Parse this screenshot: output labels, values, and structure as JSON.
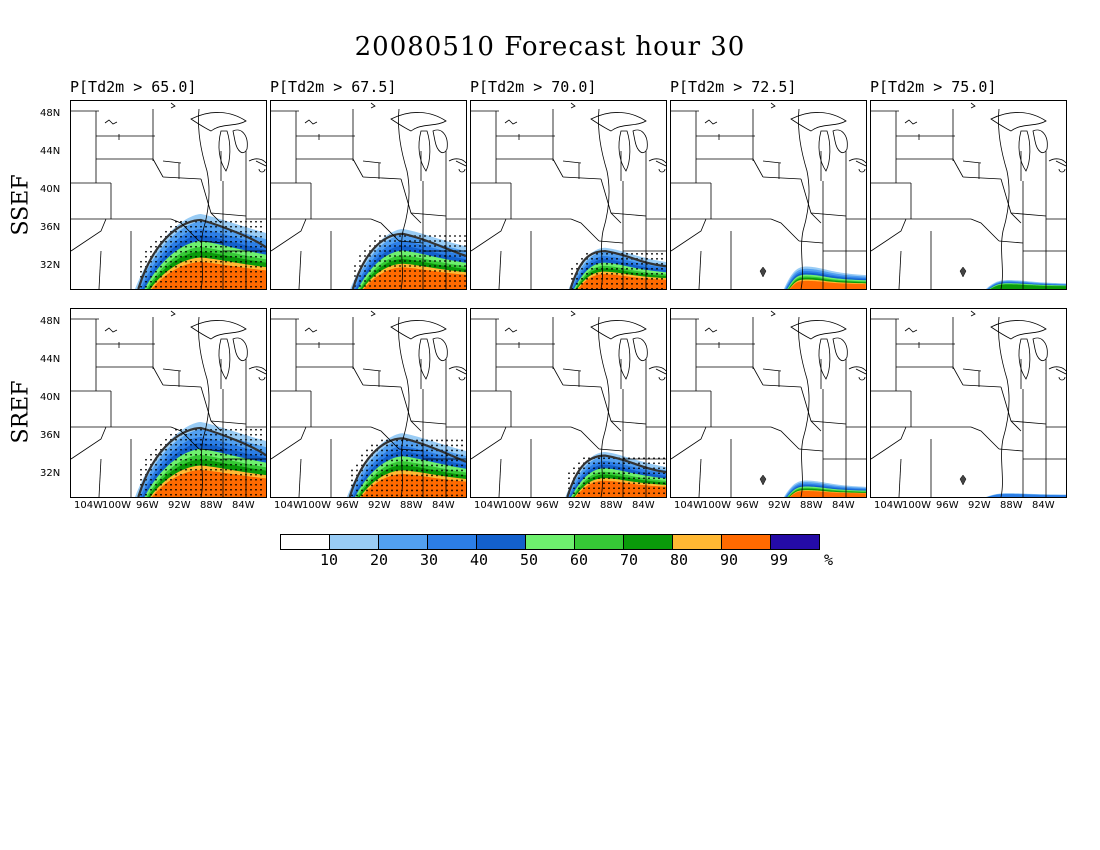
{
  "title": "20080510 Forecast hour 30",
  "panel_titles": [
    "P[Td2m > 65.0]",
    "P[Td2m > 67.5]",
    "P[Td2m > 70.0]",
    "P[Td2m > 72.5]",
    "P[Td2m > 75.0]"
  ],
  "rows": [
    "SSEF",
    "SREF"
  ],
  "lat_ticks": [
    "48N",
    "44N",
    "40N",
    "36N",
    "32N"
  ],
  "lon_ticks": [
    "104W",
    "100W",
    "96W",
    "92W",
    "88W",
    "84W"
  ],
  "colorbar": {
    "colors": [
      "#ffffff",
      "#99ccf5",
      "#52a0f0",
      "#2c7ee6",
      "#1360cc",
      "#6ef06e",
      "#36c936",
      "#0a9a0a",
      "#ffb833",
      "#ff6a00",
      "#240ba6"
    ],
    "labels": [
      "10",
      "20",
      "30",
      "40",
      "50",
      "60",
      "70",
      "80",
      "90",
      "99",
      "%"
    ]
  },
  "intensity": {
    "SSEF": [
      1.0,
      0.8,
      0.55,
      0.3,
      0.12
    ],
    "SREF": [
      1.0,
      0.85,
      0.6,
      0.22,
      0.05
    ]
  }
}
